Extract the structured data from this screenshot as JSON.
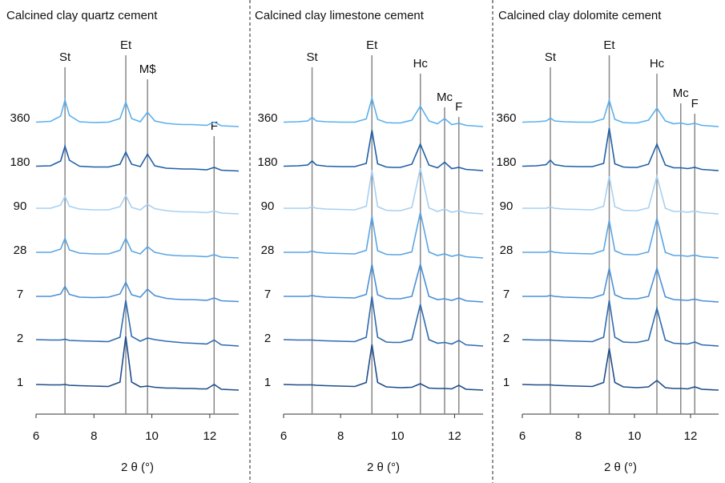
{
  "chart_data": [
    {
      "type": "line",
      "title": "Calcined clay quartz cement",
      "x_label": "2 θ (°)",
      "xlim": [
        6,
        13
      ],
      "xticks": [
        6,
        8,
        10,
        12
      ],
      "x": [
        6,
        6.5,
        6.85,
        7.0,
        7.15,
        7.5,
        8,
        8.5,
        8.9,
        9.1,
        9.3,
        9.6,
        9.85,
        10.1,
        10.5,
        10.8,
        11.1,
        11.4,
        11.65,
        11.9,
        12.15,
        12.4,
        13
      ],
      "annotations": [
        {
          "label": "St",
          "x": 7.0
        },
        {
          "label": "Et",
          "x": 9.1
        },
        {
          "label": "M$",
          "x": 9.85
        },
        {
          "label": "F",
          "x": 12.15
        }
      ],
      "series": [
        {
          "name": "1",
          "color": "#1f4e8c",
          "values": [
            2.0,
            1.9,
            1.9,
            2.0,
            1.8,
            1.7,
            1.6,
            1.5,
            2.6,
            14,
            2.6,
            1.4,
            1.6,
            1.3,
            1.1,
            1.1,
            1.0,
            1.0,
            0.9,
            0.9,
            2.0,
            0.8,
            0.6
          ]
        },
        {
          "name": "2",
          "color": "#2e6bb0",
          "values": [
            2.2,
            2.1,
            2.1,
            2.3,
            2.0,
            1.9,
            1.8,
            1.7,
            2.8,
            12,
            3.0,
            1.8,
            2.6,
            2.2,
            1.8,
            1.6,
            1.4,
            1.3,
            1.2,
            1.1,
            2.1,
            0.9,
            0.6
          ]
        },
        {
          "name": "7",
          "color": "#4a90d9",
          "values": [
            2.0,
            2.0,
            2.6,
            4.5,
            2.5,
            1.8,
            1.7,
            1.8,
            2.6,
            5.5,
            2.4,
            1.8,
            3.8,
            2.2,
            1.5,
            1.3,
            1.2,
            1.2,
            1.1,
            1.0,
            1.6,
            0.9,
            0.7
          ]
        },
        {
          "name": "28",
          "color": "#5aa5e6",
          "values": [
            2.0,
            2.0,
            2.8,
            5.5,
            2.6,
            1.8,
            1.6,
            1.6,
            2.5,
            5.5,
            2.3,
            1.6,
            3.4,
            2.0,
            1.4,
            1.2,
            1.1,
            1.1,
            1.0,
            0.9,
            1.4,
            0.8,
            0.6
          ]
        },
        {
          "name": "90",
          "color": "#a8d0f0",
          "values": [
            2.0,
            2.0,
            2.8,
            5.0,
            2.5,
            1.8,
            1.6,
            1.6,
            2.4,
            5.2,
            2.2,
            1.6,
            3.0,
            1.9,
            1.4,
            1.2,
            1.1,
            1.1,
            1.0,
            0.9,
            1.3,
            0.8,
            0.6
          ]
        },
        {
          "name": "180",
          "color": "#1f5fa8",
          "values": [
            1.5,
            1.6,
            2.8,
            6.5,
            3.0,
            1.5,
            1.3,
            1.3,
            2.0,
            5.0,
            2.0,
            1.4,
            4.5,
            1.6,
            1.0,
            0.9,
            0.8,
            0.8,
            0.7,
            0.6,
            1.2,
            0.5,
            0.3
          ]
        },
        {
          "name": "360",
          "color": "#5ab0ee",
          "values": [
            1.5,
            1.7,
            3.0,
            7.0,
            3.2,
            1.6,
            1.4,
            1.5,
            2.4,
            6.5,
            2.4,
            1.6,
            4.0,
            1.8,
            1.2,
            1.0,
            0.9,
            0.9,
            0.8,
            0.7,
            1.5,
            0.6,
            0.4
          ]
        }
      ]
    },
    {
      "type": "line",
      "title": "Calcined clay limestone cement",
      "x_label": "2 θ (°)",
      "xlim": [
        6,
        13
      ],
      "xticks": [
        6,
        8,
        10,
        12
      ],
      "x": [
        6,
        6.5,
        6.85,
        7.0,
        7.15,
        7.5,
        8,
        8.5,
        8.9,
        9.1,
        9.3,
        9.6,
        9.85,
        10.1,
        10.5,
        10.8,
        11.1,
        11.4,
        11.65,
        11.9,
        12.15,
        12.4,
        13
      ],
      "annotations": [
        {
          "label": "St",
          "x": 7.0
        },
        {
          "label": "Et",
          "x": 9.1
        },
        {
          "label": "Hc",
          "x": 10.8
        },
        {
          "label": "Mc",
          "x": 11.65
        },
        {
          "label": "F",
          "x": 12.15
        }
      ],
      "series": [
        {
          "name": "1",
          "color": "#1f4e8c",
          "values": [
            2.0,
            1.9,
            1.9,
            1.9,
            1.8,
            1.7,
            1.6,
            1.5,
            2.5,
            12,
            2.5,
            1.4,
            1.3,
            1.2,
            1.3,
            2.2,
            1.1,
            1.0,
            1.0,
            0.9,
            1.8,
            0.8,
            0.6
          ]
        },
        {
          "name": "2",
          "color": "#2e6bb0",
          "values": [
            2.2,
            2.1,
            2.1,
            2.1,
            2.0,
            1.9,
            1.8,
            1.7,
            2.8,
            13,
            2.8,
            1.6,
            1.5,
            1.5,
            2.2,
            11,
            2.2,
            1.3,
            1.5,
            1.1,
            2.0,
            0.9,
            0.6
          ]
        },
        {
          "name": "7",
          "color": "#4a90d9",
          "values": [
            2.0,
            2.0,
            2.0,
            2.2,
            2.0,
            1.8,
            1.7,
            1.6,
            2.5,
            10,
            2.4,
            1.5,
            1.4,
            1.4,
            2.0,
            10,
            2.0,
            1.2,
            1.4,
            1.0,
            1.6,
            0.9,
            0.6
          ]
        },
        {
          "name": "28",
          "color": "#5aa5e6",
          "values": [
            2.0,
            2.0,
            2.0,
            2.3,
            2.0,
            1.8,
            1.7,
            1.6,
            2.5,
            11,
            2.4,
            1.5,
            1.4,
            1.4,
            2.1,
            12,
            2.1,
            1.2,
            1.6,
            1.0,
            1.4,
            0.9,
            0.6
          ]
        },
        {
          "name": "90",
          "color": "#a8d0f0",
          "values": [
            2.0,
            2.0,
            2.0,
            2.3,
            2.0,
            1.8,
            1.7,
            1.6,
            2.5,
            11.5,
            2.4,
            1.5,
            1.4,
            1.4,
            2.2,
            12,
            2.1,
            1.2,
            1.8,
            1.0,
            1.4,
            0.9,
            0.6
          ]
        },
        {
          "name": "180",
          "color": "#1f5fa8",
          "values": [
            1.5,
            1.6,
            1.8,
            2.8,
            1.8,
            1.5,
            1.4,
            1.4,
            2.2,
            10.5,
            2.1,
            1.3,
            1.2,
            1.2,
            2.0,
            7.0,
            1.8,
            1.1,
            2.5,
            0.9,
            1.2,
            0.7,
            0.4
          ]
        },
        {
          "name": "360",
          "color": "#5ab0ee",
          "values": [
            1.5,
            1.6,
            1.8,
            2.7,
            1.8,
            1.6,
            1.5,
            1.5,
            2.3,
            7.5,
            2.2,
            1.4,
            1.3,
            1.3,
            2.0,
            5.5,
            1.8,
            1.1,
            2.4,
            0.9,
            1.2,
            0.7,
            0.4
          ]
        }
      ]
    },
    {
      "type": "line",
      "title": "Calcined clay dolomite  cement",
      "x_label": "2 θ (°)",
      "xlim": [
        6,
        13
      ],
      "xticks": [
        6,
        8,
        10,
        12
      ],
      "x": [
        6,
        6.5,
        6.85,
        7.0,
        7.15,
        7.5,
        8,
        8.5,
        8.9,
        9.1,
        9.3,
        9.6,
        9.85,
        10.1,
        10.5,
        10.8,
        11.1,
        11.4,
        11.65,
        11.9,
        12.15,
        12.4,
        13
      ],
      "annotations": [
        {
          "label": "St",
          "x": 7.0
        },
        {
          "label": "Et",
          "x": 9.1
        },
        {
          "label": "Hc",
          "x": 10.8
        },
        {
          "label": "Mc",
          "x": 11.65
        },
        {
          "label": "F",
          "x": 12.15
        }
      ],
      "series": [
        {
          "name": "1",
          "color": "#1f4e8c",
          "values": [
            2.0,
            1.9,
            1.9,
            1.9,
            1.8,
            1.7,
            1.6,
            1.5,
            2.5,
            11,
            2.5,
            1.4,
            1.3,
            1.2,
            1.4,
            3.0,
            1.2,
            1.0,
            1.0,
            0.9,
            1.4,
            0.8,
            0.6
          ]
        },
        {
          "name": "2",
          "color": "#2e6bb0",
          "values": [
            2.2,
            2.1,
            2.1,
            2.1,
            2.0,
            1.9,
            1.8,
            1.7,
            2.8,
            12,
            2.8,
            1.6,
            1.5,
            1.5,
            2.1,
            10,
            2.1,
            1.3,
            1.2,
            1.1,
            1.6,
            0.9,
            0.6
          ]
        },
        {
          "name": "7",
          "color": "#4a90d9",
          "values": [
            2.0,
            2.0,
            2.0,
            2.2,
            2.0,
            1.8,
            1.7,
            1.6,
            2.5,
            9,
            2.4,
            1.5,
            1.4,
            1.4,
            2.0,
            9,
            1.9,
            1.2,
            1.1,
            1.0,
            1.3,
            0.9,
            0.6
          ]
        },
        {
          "name": "28",
          "color": "#5aa5e6",
          "values": [
            2.0,
            2.0,
            2.0,
            2.3,
            2.0,
            1.8,
            1.7,
            1.6,
            2.5,
            10,
            2.4,
            1.5,
            1.4,
            1.4,
            2.1,
            10.5,
            2.0,
            1.2,
            1.2,
            1.0,
            1.3,
            0.9,
            0.6
          ]
        },
        {
          "name": "90",
          "color": "#a8d0f0",
          "values": [
            2.0,
            2.0,
            2.0,
            2.3,
            2.0,
            1.8,
            1.7,
            1.6,
            2.5,
            10,
            2.4,
            1.5,
            1.4,
            1.4,
            2.1,
            10,
            2.0,
            1.2,
            1.2,
            1.0,
            1.3,
            0.9,
            0.6
          ]
        },
        {
          "name": "180",
          "color": "#1f5fa8",
          "values": [
            1.5,
            1.6,
            1.9,
            3.0,
            1.9,
            1.5,
            1.4,
            1.4,
            2.2,
            11,
            2.1,
            1.3,
            1.2,
            1.2,
            2.0,
            7.0,
            1.8,
            1.1,
            1.1,
            0.9,
            1.2,
            0.7,
            0.4
          ]
        },
        {
          "name": "360",
          "color": "#5ab0ee",
          "values": [
            1.5,
            1.6,
            1.8,
            2.5,
            1.8,
            1.6,
            1.5,
            1.5,
            2.3,
            7.0,
            2.2,
            1.4,
            1.3,
            1.3,
            2.0,
            5.0,
            1.8,
            1.1,
            1.3,
            0.9,
            1.2,
            0.7,
            0.4
          ]
        }
      ]
    }
  ]
}
